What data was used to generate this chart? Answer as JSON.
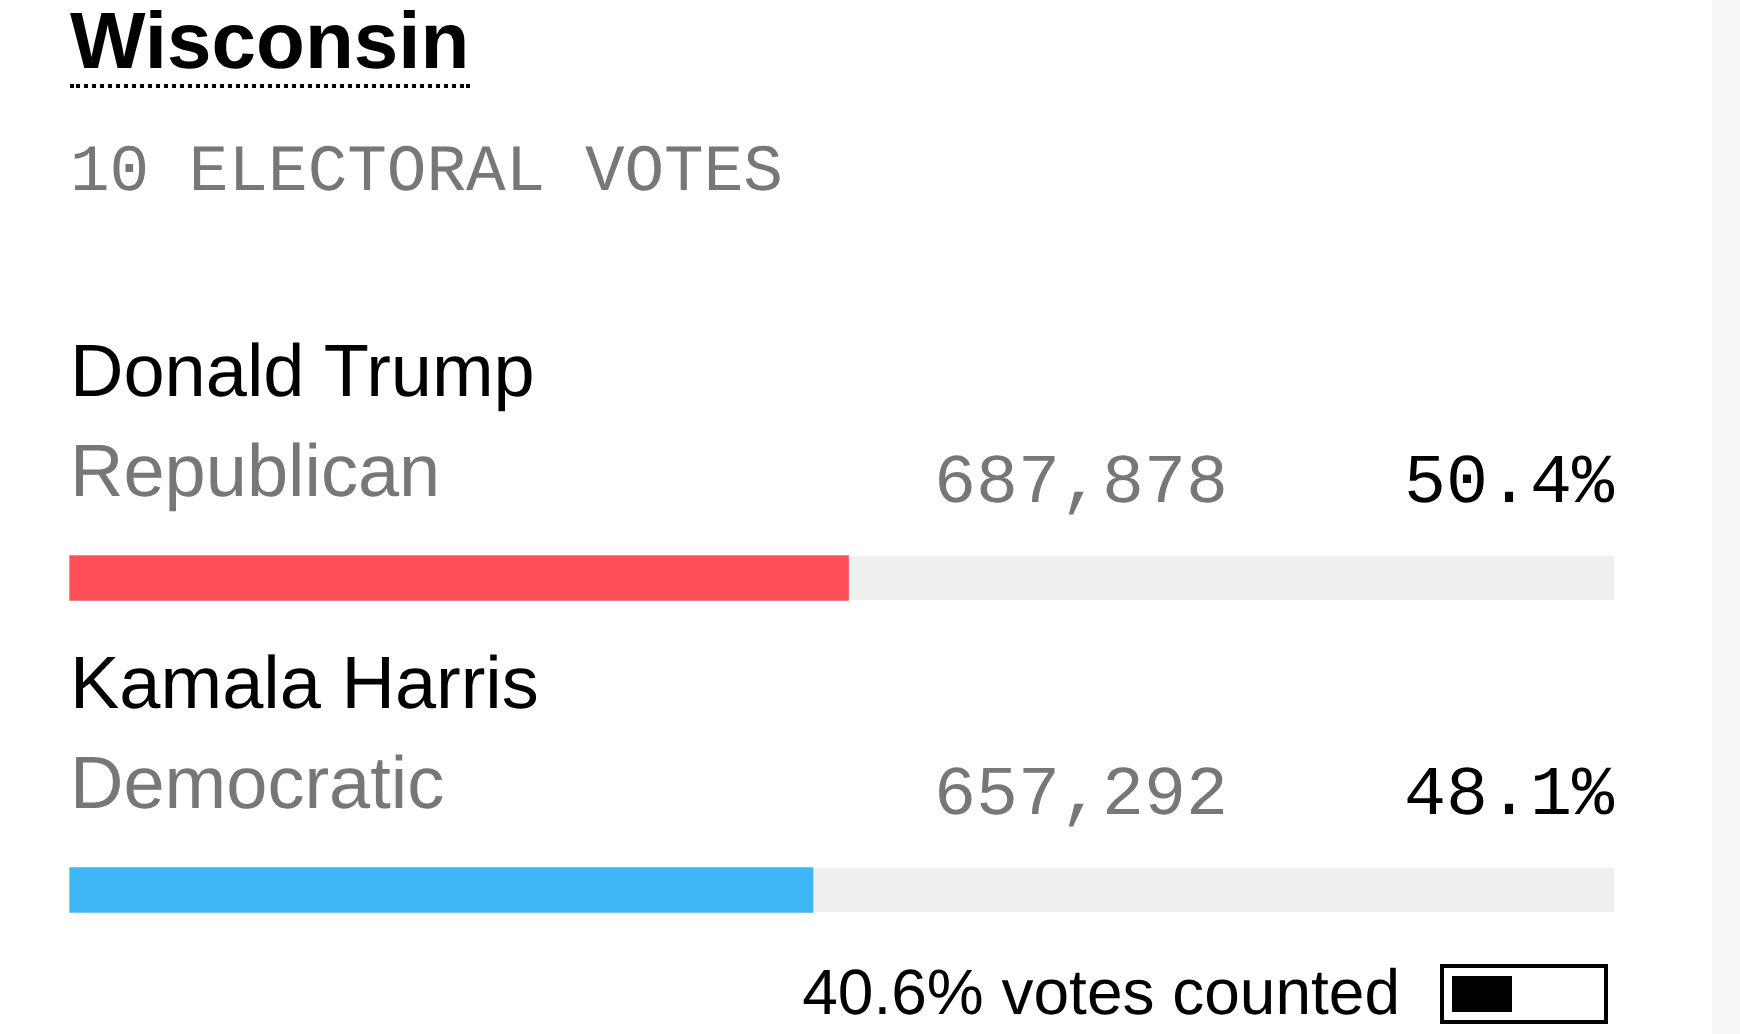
{
  "chart_data": {
    "type": "bar",
    "orientation": "horizontal",
    "title": "Wisconsin",
    "subtitle": "10 ELECTORAL VOTES",
    "categories": [
      "Donald Trump",
      "Kamala Harris"
    ],
    "values": [
      50.4,
      48.1
    ],
    "colors": [
      "#ff505a",
      "#3fb6f5"
    ],
    "value_labels": [
      "50.4%",
      "48.1%"
    ],
    "xlim": [
      0,
      100
    ],
    "tick_labels": false,
    "legend": false,
    "annotations": [
      "Republican",
      "687,878",
      "Democratic",
      "657,292",
      "40.6% votes counted"
    ]
  }
}
